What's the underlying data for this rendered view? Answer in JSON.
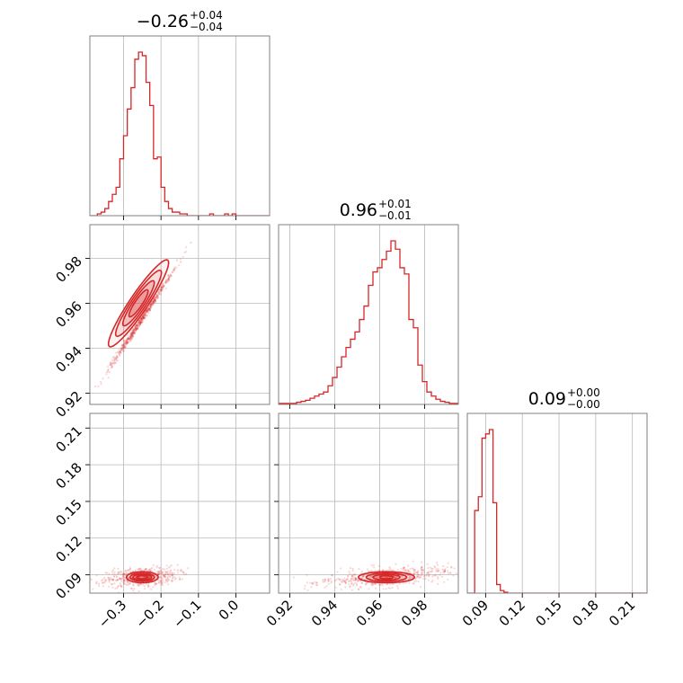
{
  "chart_data": {
    "type": "corner",
    "accent_color": "#d62728",
    "grid": true,
    "parameters": [
      {
        "range": [
          -0.39,
          0.09
        ],
        "ticks": [
          -0.3,
          -0.2,
          -0.1,
          0.0
        ],
        "tick_labels": [
          "−0.3",
          "−0.2",
          "−0.1",
          "0.0"
        ],
        "title": {
          "value": "−0.26",
          "plus": "+0.04",
          "minus": "−0.04"
        }
      },
      {
        "range": [
          0.915,
          0.995
        ],
        "ticks": [
          0.92,
          0.94,
          0.96,
          0.98
        ],
        "tick_labels": [
          "0.92",
          "0.94",
          "0.96",
          "0.98"
        ],
        "title": {
          "value": "0.96",
          "plus": "+0.01",
          "minus": "−0.01"
        }
      },
      {
        "range": [
          0.075,
          0.222
        ],
        "ticks": [
          0.09,
          0.12,
          0.15,
          0.18,
          0.21
        ],
        "tick_labels": [
          "0.09",
          "0.12",
          "0.15",
          "0.18",
          "0.21"
        ],
        "title": {
          "value": "0.09",
          "plus": "+0.00",
          "minus": "−0.00"
        }
      }
    ],
    "histograms": [
      {
        "param": 0,
        "bin_edges": [
          -0.39,
          -0.38,
          -0.37,
          -0.36,
          -0.35,
          -0.34,
          -0.33,
          -0.32,
          -0.31,
          -0.3,
          -0.29,
          -0.28,
          -0.27,
          -0.26,
          -0.25,
          -0.24,
          -0.23,
          -0.22,
          -0.21,
          -0.2,
          -0.19,
          -0.18,
          -0.17,
          -0.16,
          -0.15,
          -0.14,
          -0.13,
          -0.12,
          -0.11,
          -0.1,
          -0.09,
          -0.08,
          -0.07,
          -0.06,
          -0.05,
          -0.04,
          -0.03,
          -0.02,
          -0.01,
          0.0,
          0.01,
          0.02,
          0.03,
          0.04,
          0.05,
          0.06,
          0.07,
          0.08,
          0.09
        ],
        "counts": [
          0,
          0,
          1,
          2,
          4,
          8,
          12,
          16,
          32,
          45,
          60,
          72,
          88,
          92,
          90,
          75,
          62,
          32,
          33,
          16,
          8,
          4,
          2,
          2,
          1,
          1,
          0,
          0,
          0,
          0,
          0,
          0,
          1,
          0,
          0,
          0,
          1,
          0,
          1,
          0,
          0,
          0,
          0,
          0,
          0,
          0,
          0,
          0
        ]
      },
      {
        "param": 1,
        "bin_edges": [
          0.915,
          0.917,
          0.919,
          0.921,
          0.923,
          0.925,
          0.927,
          0.929,
          0.931,
          0.933,
          0.935,
          0.937,
          0.939,
          0.941,
          0.943,
          0.945,
          0.947,
          0.949,
          0.951,
          0.953,
          0.955,
          0.957,
          0.959,
          0.961,
          0.963,
          0.965,
          0.967,
          0.969,
          0.971,
          0.973,
          0.975,
          0.977,
          0.979,
          0.981,
          0.983,
          0.985,
          0.987,
          0.989,
          0.991,
          0.993,
          0.995
        ],
        "counts": [
          1,
          1,
          1,
          1,
          2,
          3,
          4,
          6,
          8,
          10,
          12,
          18,
          26,
          36,
          46,
          55,
          63,
          70,
          82,
          95,
          115,
          128,
          132,
          140,
          148,
          158,
          150,
          132,
          126,
          82,
          74,
          38,
          22,
          12,
          8,
          5,
          3,
          2,
          1,
          1
        ]
      },
      {
        "param": 2,
        "bin_edges": [
          0.075,
          0.078,
          0.081,
          0.084,
          0.087,
          0.09,
          0.093,
          0.096,
          0.099,
          0.102,
          0.105,
          0.108,
          0.111,
          0.114,
          0.117,
          0.12,
          0.123,
          0.126,
          0.129,
          0.132,
          0.135,
          0.138,
          0.141,
          0.144,
          0.147,
          0.15,
          0.153,
          0.156,
          0.159,
          0.162,
          0.165,
          0.168,
          0.171,
          0.174,
          0.177,
          0.18,
          0.183,
          0.186,
          0.189,
          0.192,
          0.195,
          0.198,
          0.201,
          0.204,
          0.207,
          0.21,
          0.213,
          0.216,
          0.219,
          0.222
        ],
        "counts": [
          0,
          0,
          96,
          112,
          180,
          185,
          190,
          105,
          10,
          3,
          1,
          0,
          0,
          0,
          0,
          0,
          0,
          0,
          0,
          0,
          0,
          0,
          0,
          0,
          0,
          0,
          0,
          0,
          0,
          0,
          0,
          0,
          0,
          0,
          0,
          0,
          0,
          0,
          0,
          0,
          0,
          0,
          0,
          0,
          0,
          0,
          0,
          0,
          0
        ]
      }
    ],
    "pairs": [
      {
        "x_param": 0,
        "y_param": 1,
        "center": [
          -0.26,
          0.96
        ],
        "ellipses": [
          {
            "rx": 0.055,
            "ry": 0.0045,
            "angle_deg": 56
          },
          {
            "rx": 0.09,
            "ry": 0.0075,
            "angle_deg": 56
          },
          {
            "rx": 0.13,
            "ry": 0.0105,
            "angle_deg": 56
          },
          {
            "rx": 0.18,
            "ry": 0.014,
            "angle_deg": 56
          }
        ],
        "scatter_trend": {
          "x_from": -0.39,
          "x_to": -0.12,
          "y_from": 0.918,
          "y_to": 0.986
        }
      },
      {
        "x_param": 0,
        "y_param": 2,
        "center": [
          -0.25,
          0.088
        ],
        "ellipses": [
          {
            "rx": 0.03,
            "ry": 0.0012,
            "angle_deg": 4
          },
          {
            "rx": 0.05,
            "ry": 0.0022,
            "angle_deg": 4
          },
          {
            "rx": 0.065,
            "ry": 0.0032,
            "angle_deg": 4
          },
          {
            "rx": 0.085,
            "ry": 0.0045,
            "angle_deg": 4
          }
        ],
        "scatter_trend": {
          "x_from": -0.39,
          "x_to": -0.12,
          "y_from": 0.083,
          "y_to": 0.093
        }
      },
      {
        "x_param": 1,
        "y_param": 2,
        "center": [
          0.963,
          0.088
        ],
        "ellipses": [
          {
            "rx": 0.006,
            "ry": 0.0012,
            "angle_deg": 4
          },
          {
            "rx": 0.012,
            "ry": 0.0022,
            "angle_deg": 4
          },
          {
            "rx": 0.018,
            "ry": 0.0033,
            "angle_deg": 4
          },
          {
            "rx": 0.025,
            "ry": 0.0045,
            "angle_deg": 4
          }
        ],
        "scatter_trend": {
          "x_from": 0.93,
          "x_to": 0.99,
          "y_from": 0.083,
          "y_to": 0.094
        }
      }
    ]
  }
}
